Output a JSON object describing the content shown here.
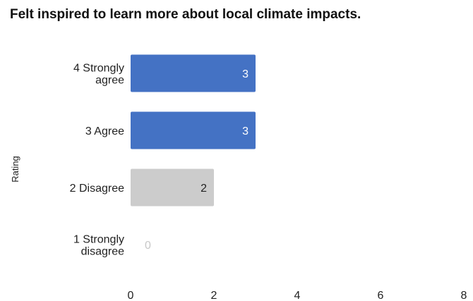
{
  "chart_data": {
    "type": "bar",
    "orientation": "horizontal",
    "title": "Felt inspired to learn more about local climate impacts.",
    "ylabel": "Rating",
    "xlabel": "",
    "categories": [
      [
        "4 Strongly",
        "agree"
      ],
      [
        "3 Agree"
      ],
      [
        "2 Disagree"
      ],
      [
        "1 Strongly",
        "disagree"
      ]
    ],
    "values": [
      3,
      3,
      2,
      0
    ],
    "xlim": [
      0,
      8
    ],
    "xticks": [
      "0",
      "2",
      "4",
      "6",
      "8"
    ],
    "grid": false,
    "legend": "none",
    "colors": {
      "agree": "#4472c4",
      "disagree": "#cccccc",
      "label_on_dark": "#ffffff",
      "label_on_light": "#222222",
      "label_zero": "#c8c8c8",
      "text": "#222222"
    },
    "bar_color_keys": [
      "agree",
      "agree",
      "disagree",
      "disagree"
    ]
  }
}
